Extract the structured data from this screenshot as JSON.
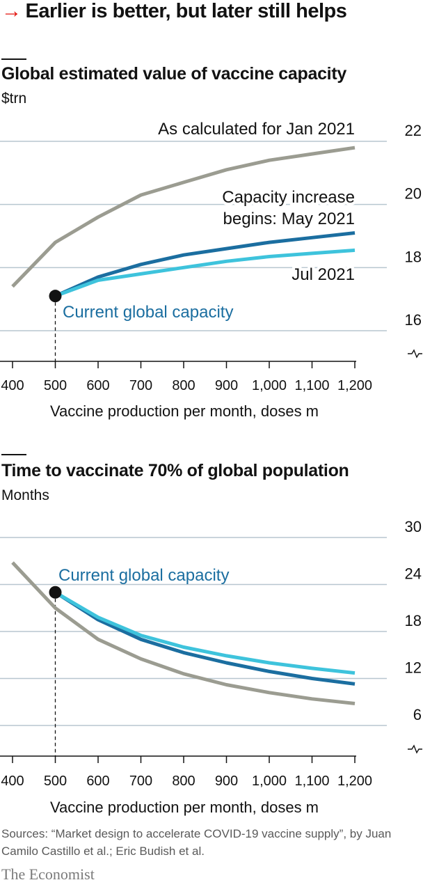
{
  "headline": "Earlier is better, but later still helps",
  "headline_arrow": "→",
  "panels": [
    {
      "title": "Global estimated value of vaccine capacity",
      "unit": "$trn"
    },
    {
      "title": "Time to vaccinate 70% of global population",
      "unit": "Months"
    }
  ],
  "chart_data": [
    {
      "type": "line",
      "title": "Global estimated value of vaccine capacity",
      "ylabel": "$trn",
      "xlabel": "Vaccine production per month, doses m",
      "x": [
        400,
        500,
        600,
        700,
        800,
        900,
        1000,
        1100,
        1200
      ],
      "x_tick_labels": [
        "400",
        "500",
        "600",
        "700",
        "800",
        "900",
        "1,000",
        "1,100",
        "1,200"
      ],
      "xlim": [
        400,
        1200
      ],
      "ylim": [
        15,
        22
      ],
      "y_ticks": [
        16,
        18,
        20,
        22
      ],
      "y_axis_break": true,
      "grid": true,
      "series": [
        {
          "name": "As calculated for Jan 2021",
          "color": "#9b9c91",
          "x": [
            400,
            500,
            600,
            700,
            800,
            900,
            1000,
            1100,
            1200
          ],
          "values": [
            17.4,
            18.8,
            19.6,
            20.3,
            20.7,
            21.1,
            21.4,
            21.6,
            21.8
          ]
        },
        {
          "name": "Capacity increase begins: May 2021",
          "color": "#1b6ea0",
          "x": [
            500,
            600,
            700,
            800,
            900,
            1000,
            1100,
            1200
          ],
          "values": [
            17.1,
            17.7,
            18.1,
            18.4,
            18.6,
            18.8,
            18.95,
            19.1
          ]
        },
        {
          "name": "Jul 2021",
          "color": "#3ec3dc",
          "x": [
            500,
            600,
            700,
            800,
            900,
            1000,
            1100,
            1200
          ],
          "values": [
            17.1,
            17.6,
            17.8,
            18.0,
            18.2,
            18.35,
            18.45,
            18.55
          ]
        }
      ],
      "annotations": [
        {
          "text": "Current global capacity",
          "x": 500,
          "y": 17.1
        }
      ]
    },
    {
      "type": "line",
      "title": "Time to vaccinate 70% of global population",
      "ylabel": "Months",
      "xlabel": "Vaccine production per month, doses m",
      "x": [
        400,
        500,
        600,
        700,
        800,
        900,
        1000,
        1100,
        1200
      ],
      "x_tick_labels": [
        "400",
        "500",
        "600",
        "700",
        "800",
        "900",
        "1,000",
        "1,100",
        "1,200"
      ],
      "xlim": [
        400,
        1200
      ],
      "ylim": [
        3,
        30
      ],
      "y_ticks": [
        6,
        12,
        18,
        24,
        30
      ],
      "y_axis_break": true,
      "grid": true,
      "series": [
        {
          "color": "#9b9c91",
          "x": [
            400,
            500,
            600,
            700,
            800,
            900,
            1000,
            1100,
            1200
          ],
          "values": [
            26.8,
            21.0,
            17.0,
            14.5,
            12.6,
            11.2,
            10.2,
            9.4,
            8.8
          ]
        },
        {
          "color": "#1b6ea0",
          "x": [
            500,
            600,
            700,
            800,
            900,
            1000,
            1100,
            1200
          ],
          "values": [
            23.0,
            19.5,
            17.0,
            15.3,
            14.0,
            12.9,
            12.0,
            11.3
          ]
        },
        {
          "color": "#3ec3dc",
          "x": [
            500,
            600,
            700,
            800,
            900,
            1000,
            1100,
            1200
          ],
          "values": [
            23.0,
            19.8,
            17.5,
            16.0,
            14.9,
            14.0,
            13.3,
            12.7
          ]
        }
      ],
      "annotations": [
        {
          "text": "Current global capacity",
          "x": 500,
          "y": 23.0
        }
      ]
    }
  ],
  "source": "Sources: “Market design to accelerate COVID-19 vaccine supply”, by Juan Camilo Castillo et al.; Eric Budish et al.",
  "brand": "The Economist"
}
